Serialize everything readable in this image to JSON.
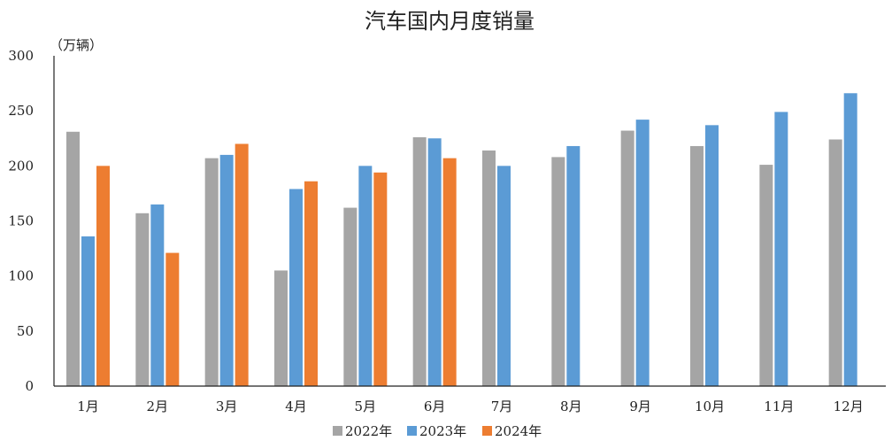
{
  "chart_data": {
    "type": "bar",
    "title": "汽车国内月度销量",
    "unit_label": "（万辆）",
    "xlabel": "",
    "ylabel": "",
    "ylim": [
      0,
      300
    ],
    "yticks": [
      0,
      50,
      100,
      150,
      200,
      250,
      300
    ],
    "grid": false,
    "legend_position": "bottom",
    "categories": [
      "1月",
      "2月",
      "3月",
      "4月",
      "5月",
      "6月",
      "7月",
      "8月",
      "9月",
      "10月",
      "11月",
      "12月"
    ],
    "series": [
      {
        "name": "2022年",
        "color": "#a5a5a5",
        "values": [
          231,
          157,
          207,
          105,
          162,
          226,
          214,
          208,
          232,
          218,
          201,
          224
        ]
      },
      {
        "name": "2023年",
        "color": "#5b9bd5",
        "values": [
          136,
          165,
          210,
          179,
          200,
          225,
          200,
          218,
          242,
          237,
          249,
          266
        ]
      },
      {
        "name": "2024年",
        "color": "#ed7d31",
        "values": [
          200,
          121,
          220,
          186,
          194,
          207,
          null,
          null,
          null,
          null,
          null,
          null
        ]
      }
    ]
  }
}
